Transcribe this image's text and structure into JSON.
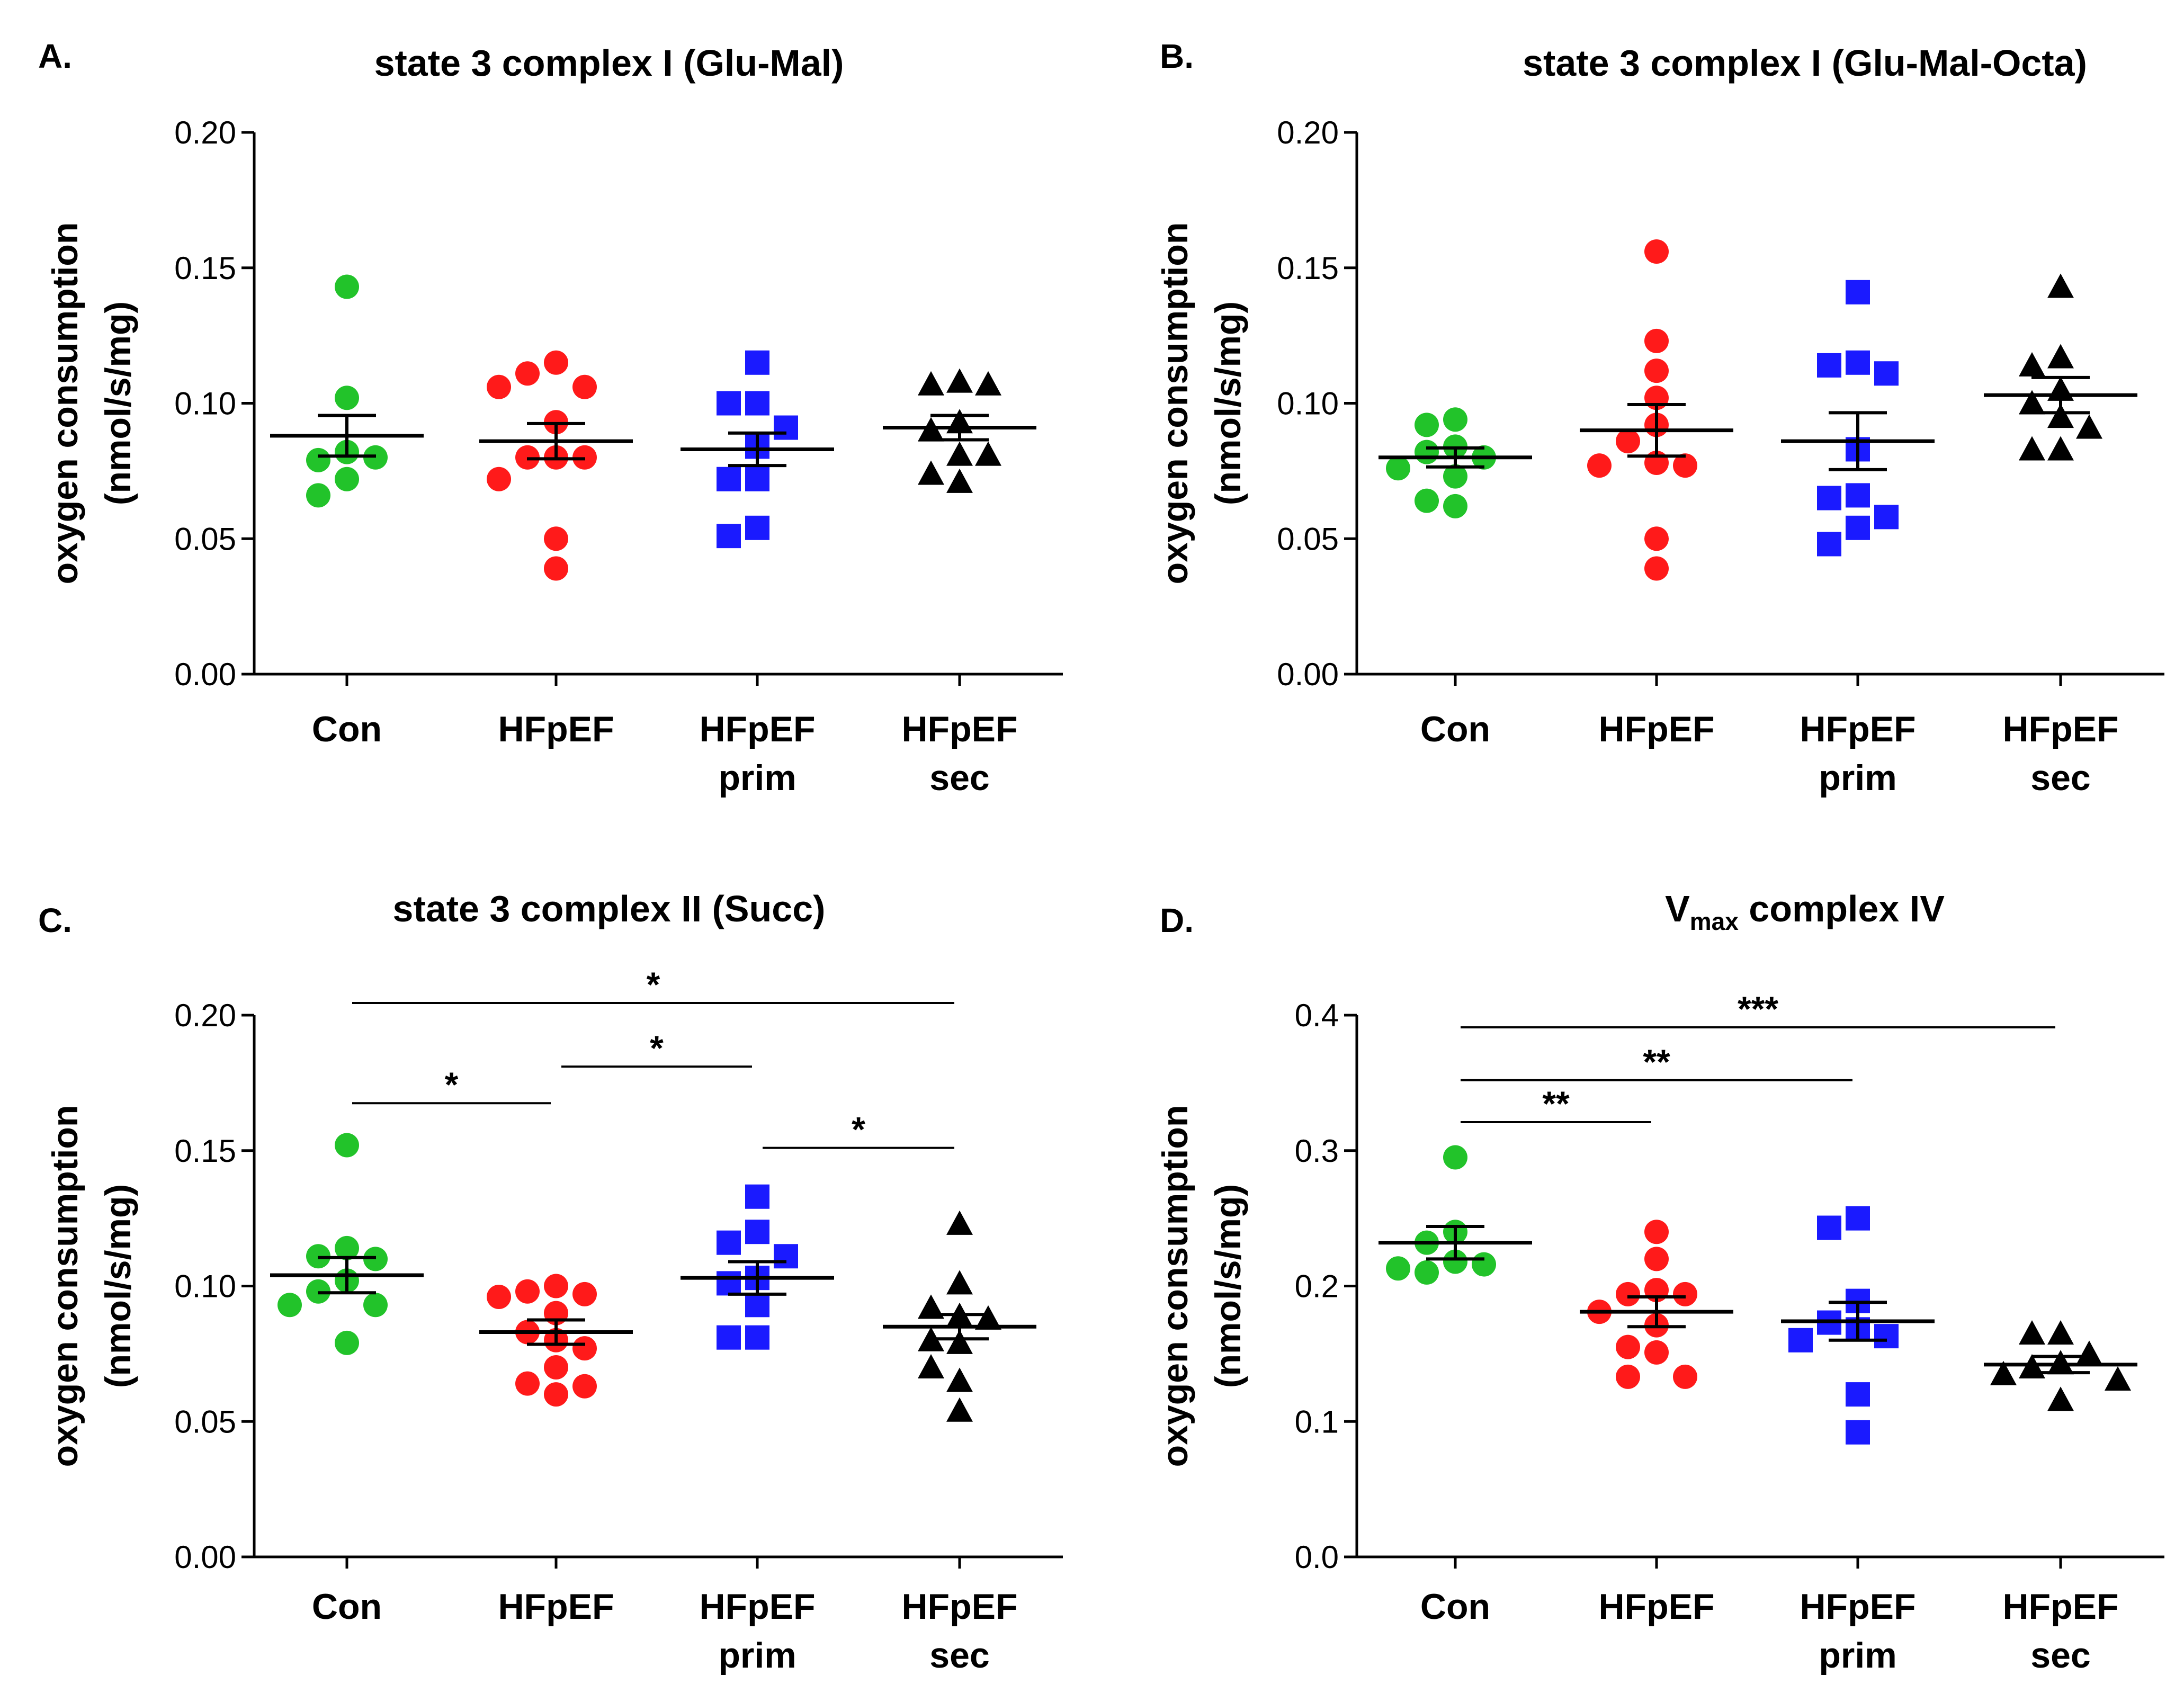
{
  "figure": {
    "colors": {
      "Con": "#22c32a",
      "HFpEF": "#ff1a1a",
      "HFpEF prim": "#1a1aff",
      "HFpEF sec": "#000000"
    },
    "markers": {
      "Con": "circle",
      "HFpEF": "circle",
      "HFpEF prim": "square",
      "HFpEF sec": "triangle"
    }
  },
  "chart_data": [
    {
      "type": "scatter",
      "panel": "A.",
      "title": "state 3 complex I (Glu-Mal)",
      "ylabel": [
        "oxygen consumption",
        "(nmol/s/mg)"
      ],
      "ylim": [
        0,
        0.2
      ],
      "yticks": [
        "0.00",
        "0.05",
        "0.10",
        "0.15",
        "0.20"
      ],
      "categories": [
        [
          "Con"
        ],
        [
          "HFpEF"
        ],
        [
          "HFpEF",
          "prim"
        ],
        [
          "HFpEF",
          "sec"
        ]
      ],
      "groups": [
        "Con",
        "HFpEF",
        "HFpEF prim",
        "HFpEF sec"
      ],
      "points": [
        [
          0.143,
          0.102,
          0.082,
          0.079,
          0.08,
          0.072,
          0.066
        ],
        [
          0.115,
          0.111,
          0.106,
          0.106,
          0.093,
          0.08,
          0.08,
          0.08,
          0.072,
          0.05,
          0.039
        ],
        [
          0.115,
          0.1,
          0.1,
          0.091,
          0.084,
          0.072,
          0.072,
          0.054,
          0.051
        ],
        [
          0.108,
          0.107,
          0.107,
          0.093,
          0.09,
          0.081,
          0.081,
          0.074,
          0.071
        ]
      ],
      "mean": [
        0.088,
        0.086,
        0.083,
        0.091
      ],
      "sem": [
        0.0075,
        0.0065,
        0.006,
        0.0045
      ],
      "significance": []
    },
    {
      "type": "scatter",
      "panel": "B.",
      "title": "state 3 complex I (Glu-Mal-Octa)",
      "ylabel": [
        "oxygen consumption",
        "(nmol/s/mg)"
      ],
      "ylim": [
        0,
        0.2
      ],
      "yticks": [
        "0.00",
        "0.05",
        "0.10",
        "0.15",
        "0.20"
      ],
      "categories": [
        [
          "Con"
        ],
        [
          "HFpEF"
        ],
        [
          "HFpEF",
          "prim"
        ],
        [
          "HFpEF",
          "sec"
        ]
      ],
      "groups": [
        "Con",
        "HFpEF",
        "HFpEF prim",
        "HFpEF sec"
      ],
      "points": [
        [
          0.094,
          0.092,
          0.084,
          0.082,
          0.08,
          0.076,
          0.073,
          0.064,
          0.062
        ],
        [
          0.156,
          0.123,
          0.112,
          0.102,
          0.092,
          0.086,
          0.078,
          0.077,
          0.077,
          0.05,
          0.039
        ],
        [
          0.141,
          0.115,
          0.114,
          0.111,
          0.083,
          0.066,
          0.065,
          0.058,
          0.054,
          0.048
        ],
        [
          0.143,
          0.117,
          0.114,
          0.105,
          0.1,
          0.095,
          0.091,
          0.083,
          0.083
        ]
      ],
      "mean": [
        0.08,
        0.09,
        0.086,
        0.103
      ],
      "sem": [
        0.0035,
        0.0095,
        0.0105,
        0.0065
      ],
      "significance": []
    },
    {
      "type": "scatter",
      "panel": "C.",
      "title": "state 3 complex II (Succ)",
      "ylabel": [
        "oxygen consumption",
        "(nmol/s/mg)"
      ],
      "ylim": [
        0,
        0.2
      ],
      "yticks": [
        "0.00",
        "0.05",
        "0.10",
        "0.15",
        "0.20"
      ],
      "categories": [
        [
          "Con"
        ],
        [
          "HFpEF"
        ],
        [
          "HFpEF",
          "prim"
        ],
        [
          "HFpEF",
          "sec"
        ]
      ],
      "groups": [
        "Con",
        "HFpEF",
        "HFpEF prim",
        "HFpEF sec"
      ],
      "points": [
        [
          0.152,
          0.114,
          0.111,
          0.11,
          0.102,
          0.098,
          0.093,
          0.093,
          0.079
        ],
        [
          0.1,
          0.098,
          0.097,
          0.096,
          0.09,
          0.083,
          0.08,
          0.077,
          0.07,
          0.064,
          0.063,
          0.06
        ],
        [
          0.133,
          0.12,
          0.116,
          0.111,
          0.103,
          0.101,
          0.093,
          0.081,
          0.081
        ],
        [
          0.123,
          0.101,
          0.092,
          0.089,
          0.088,
          0.08,
          0.079,
          0.07,
          0.065,
          0.054
        ]
      ],
      "mean": [
        0.104,
        0.083,
        0.103,
        0.085
      ],
      "sem": [
        0.0065,
        0.0045,
        0.006,
        0.0045
      ],
      "significance": [
        {
          "from": 0,
          "to": 3,
          "y": 0.2045,
          "label": "*"
        },
        {
          "from": 0,
          "to": 1,
          "y": 0.1675,
          "label": "*"
        },
        {
          "from": 1,
          "to": 2,
          "y": 0.181,
          "label": "*"
        },
        {
          "from": 2,
          "to": 3,
          "y": 0.151,
          "label": "*"
        }
      ]
    },
    {
      "type": "scatter",
      "panel": "D.",
      "title": "V",
      "title_sub": "max",
      "title_tail": " complex IV",
      "ylabel": [
        "oxygen consumption",
        "(nmol/s/mg)"
      ],
      "ylim": [
        0,
        0.4
      ],
      "yticks": [
        "0.0",
        "0.1",
        "0.2",
        "0.3",
        "0.4"
      ],
      "categories": [
        [
          "Con"
        ],
        [
          "HFpEF"
        ],
        [
          "HFpEF",
          "prim"
        ],
        [
          "HFpEF",
          "sec"
        ]
      ],
      "groups": [
        "Con",
        "HFpEF",
        "HFpEF prim",
        "HFpEF sec"
      ],
      "points": [
        [
          0.295,
          0.24,
          0.232,
          0.218,
          0.216,
          0.213,
          0.21
        ],
        [
          0.24,
          0.22,
          0.197,
          0.194,
          0.194,
          0.181,
          0.171,
          0.155,
          0.151,
          0.133,
          0.133
        ],
        [
          0.25,
          0.243,
          0.189,
          0.173,
          0.168,
          0.163,
          0.16,
          0.12,
          0.092
        ],
        [
          0.165,
          0.165,
          0.15,
          0.143,
          0.14,
          0.135,
          0.131,
          0.116
        ]
      ],
      "mean": [
        0.232,
        0.181,
        0.174,
        0.142
      ],
      "sem": [
        0.012,
        0.011,
        0.014,
        0.006
      ],
      "significance": [
        {
          "from": 0,
          "to": 3,
          "y": 0.391,
          "label": "***"
        },
        {
          "from": 0,
          "to": 2,
          "y": 0.352,
          "label": "**"
        },
        {
          "from": 0,
          "to": 1,
          "y": 0.321,
          "label": "**"
        }
      ]
    }
  ]
}
